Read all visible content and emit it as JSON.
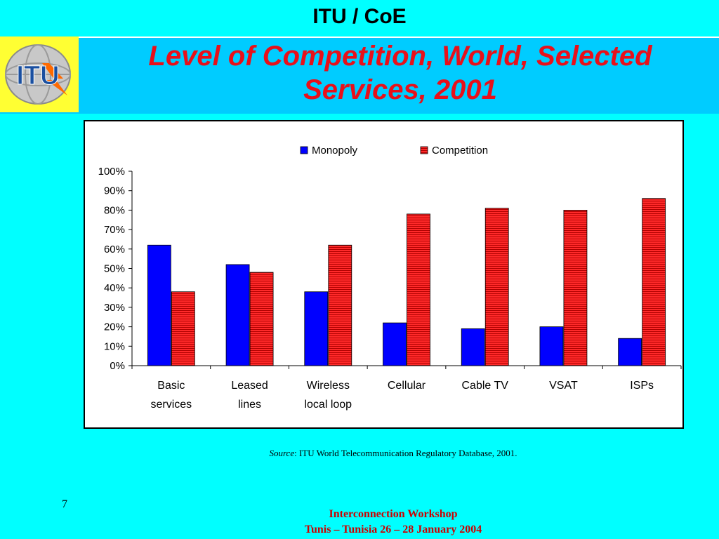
{
  "header": {
    "title": "ITU / CoE"
  },
  "slide": {
    "title_line1": "Level of Competition, World, Selected",
    "title_line2": "Services, 2001",
    "page_number": "7"
  },
  "logo": {
    "text": "ITU"
  },
  "source": {
    "label": "Source",
    "text": ": ITU World Telecommunication Regulatory Database, 2001."
  },
  "footer": {
    "line1": "Interconnection Workshop",
    "line2": "Tunis – Tunisia 26 – 28 January 2004"
  },
  "colors": {
    "monopoly": "#0000FF",
    "competition": "#FF2020",
    "background": "#00FFFF",
    "title_band": "#00CCFF",
    "title_text": "#E8101A"
  },
  "chart_data": {
    "type": "bar",
    "categories": [
      [
        "Basic",
        "services"
      ],
      [
        "Leased",
        "lines"
      ],
      [
        "Wireless",
        "local loop"
      ],
      [
        "Cellular"
      ],
      [
        "Cable TV"
      ],
      [
        "VSAT"
      ],
      [
        "ISPs"
      ]
    ],
    "series": [
      {
        "name": "Monopoly",
        "values": [
          62,
          52,
          38,
          22,
          19,
          20,
          14
        ]
      },
      {
        "name": "Competition",
        "values": [
          38,
          48,
          62,
          78,
          81,
          80,
          86
        ]
      }
    ],
    "ylim": [
      0,
      100
    ],
    "yticks": [
      "0%",
      "10%",
      "20%",
      "30%",
      "40%",
      "50%",
      "60%",
      "70%",
      "80%",
      "90%",
      "100%"
    ],
    "legend_position": "top",
    "grid": false
  }
}
